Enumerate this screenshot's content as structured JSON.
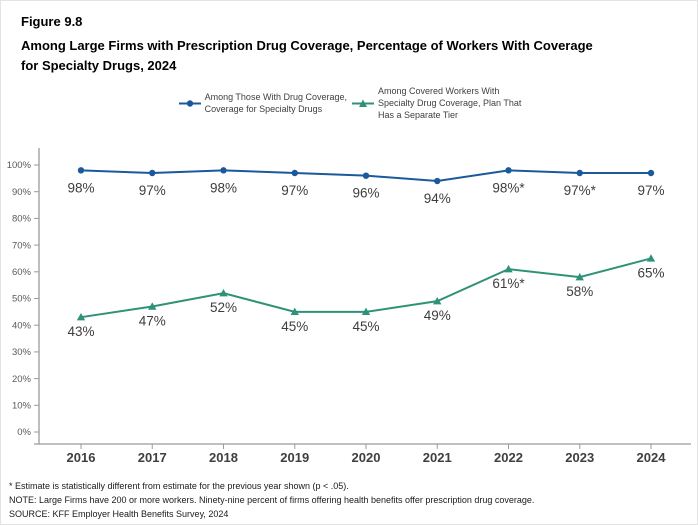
{
  "header": {
    "figure_label": "Figure 9.8",
    "title": "Among Large Firms with Prescription Drug Coverage, Percentage of Workers With Coverage\nfor Specialty Drugs, 2024"
  },
  "legend": {
    "items": [
      {
        "label": "Among Those With Drug Coverage,\nCoverage for Specialty Drugs",
        "marker": "line-with-circle",
        "color": "#1A5A9C"
      },
      {
        "label": "Among Covered Workers With\nSpecialty Drug Coverage, Plan That\nHas a Separate Tier",
        "marker": "line-with-triangle",
        "color": "#2F9277"
      }
    ]
  },
  "chart_data": {
    "type": "line",
    "categories": [
      "2016",
      "2017",
      "2018",
      "2019",
      "2020",
      "2021",
      "2022",
      "2023",
      "2024"
    ],
    "series": [
      {
        "name": "Among Those With Drug Coverage, Coverage for Specialty Drugs",
        "color": "#1A5A9C",
        "marker": "circle",
        "values": [
          98,
          97,
          98,
          97,
          96,
          94,
          98,
          97,
          97
        ],
        "labels": [
          "98%",
          "97%",
          "98%",
          "97%",
          "96%",
          "94%",
          "98%*",
          "97%*",
          "97%"
        ]
      },
      {
        "name": "Among Covered Workers With Specialty Drug Coverage, Plan That Has a Separate Tier",
        "color": "#2F9277",
        "marker": "triangle",
        "values": [
          43,
          47,
          52,
          45,
          45,
          49,
          61,
          58,
          65
        ],
        "labels": [
          "43%",
          "47%",
          "52%",
          "45%",
          "45%",
          "49%",
          "61%*",
          "58%",
          "65%"
        ]
      }
    ],
    "title": "Among Large Firms with Prescription Drug Coverage, Percentage of Workers With Coverage for Specialty Drugs, 2024",
    "xlabel": "",
    "ylabel": "",
    "ylim": [
      0,
      100
    ],
    "ytick_step": 10,
    "ytick_suffix": "%",
    "grid": false,
    "legend_position": "top",
    "data_labels_shown": true
  },
  "footnotes": {
    "line1": "* Estimate is statistically different from estimate for the previous year shown (p < .05).",
    "line2": "NOTE: Large Firms have 200 or more workers. Ninety-nine percent of firms offering health benefits offer prescription drug coverage.",
    "line3": "SOURCE: KFF Employer Health Benefits Survey, 2024"
  },
  "colors": {
    "series_blue": "#1A5A9C",
    "series_teal": "#2F9277",
    "axis": "#9A9A9A",
    "y_tick_label": "#595959",
    "x_tick_label": "#3F3F3F",
    "data_label": "#3D3D3D",
    "title_text": "#000000"
  }
}
